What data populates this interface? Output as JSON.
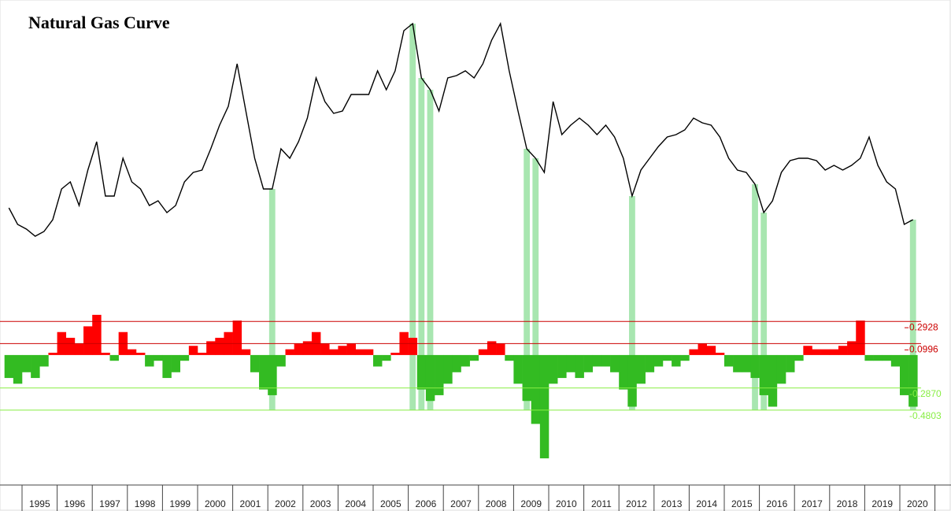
{
  "chart_data": {
    "type": "line",
    "title": "Natural Gas Curve",
    "color": "#000000",
    "ylim": [
      0,
      110
    ],
    "categories": [
      null,
      null,
      "1995",
      null,
      null,
      null,
      "1996",
      null,
      null,
      null,
      "1997",
      null,
      null,
      null,
      "1998",
      null,
      null,
      null,
      "1999",
      null,
      null,
      null,
      "2000",
      null,
      null,
      null,
      "2001",
      null,
      null,
      null,
      "2002",
      null,
      null,
      null,
      "2003",
      null,
      null,
      null,
      "2004",
      null,
      null,
      null,
      "2005",
      null,
      null,
      null,
      "2006",
      null,
      null,
      null,
      "2007",
      null,
      null,
      null,
      "2008",
      null,
      null,
      null,
      "2009",
      null,
      null,
      null,
      "2010",
      null,
      null,
      null,
      "2011",
      null,
      null,
      null,
      "2012",
      null,
      null,
      null,
      "2013",
      null,
      null,
      null,
      "2014",
      null,
      null,
      null,
      "2015",
      null,
      null,
      null,
      "2016",
      null,
      null,
      null,
      "2017",
      null,
      null,
      null,
      "2018",
      null,
      null,
      null,
      "2019",
      null,
      null,
      null,
      "2020",
      null
    ],
    "values": [
      22,
      15,
      13,
      10,
      12,
      17,
      30,
      33,
      23,
      38,
      50,
      27,
      27,
      43,
      33,
      30,
      23,
      25,
      20,
      23,
      33,
      37,
      38,
      47,
      57,
      65,
      83,
      63,
      43,
      30,
      30,
      47,
      43,
      50,
      60,
      77,
      67,
      62,
      63,
      70,
      70,
      70,
      80,
      72,
      80,
      97,
      100,
      77,
      72,
      63,
      77,
      78,
      80,
      77,
      83,
      93,
      100,
      80,
      63,
      47,
      43,
      37,
      67,
      53,
      57,
      60,
      57,
      53,
      57,
      52,
      43,
      27,
      38,
      43,
      48,
      52,
      53,
      55,
      60,
      58,
      57,
      52,
      43,
      38,
      37,
      32,
      20,
      25,
      37,
      42,
      43,
      43,
      42,
      38,
      40,
      38,
      40,
      43,
      52,
      40,
      33,
      30,
      15,
      17
    ],
    "oscillator": {
      "type": "bar",
      "ylim": [
        -1.05,
        0.5
      ],
      "positive_color": "#ff0000",
      "negative_color": "#33bb22",
      "values": [
        -0.2,
        -0.25,
        -0.15,
        -0.2,
        -0.1,
        0.02,
        0.2,
        0.15,
        0.1,
        0.25,
        0.35,
        0.02,
        -0.05,
        0.2,
        0.05,
        0.02,
        -0.1,
        -0.05,
        -0.2,
        -0.15,
        -0.05,
        0.08,
        0.02,
        0.12,
        0.15,
        0.2,
        0.3,
        0.05,
        -0.15,
        -0.3,
        -0.35,
        -0.1,
        0.05,
        0.1,
        0.12,
        0.2,
        0.1,
        0.05,
        0.08,
        0.1,
        0.05,
        0.05,
        -0.1,
        -0.05,
        0.02,
        0.2,
        0.15,
        -0.3,
        -0.4,
        -0.35,
        -0.25,
        -0.15,
        -0.1,
        -0.05,
        0.05,
        0.12,
        0.1,
        -0.05,
        -0.25,
        -0.4,
        -0.6,
        -0.9,
        -0.25,
        -0.2,
        -0.15,
        -0.2,
        -0.15,
        -0.1,
        -0.1,
        -0.15,
        -0.3,
        -0.45,
        -0.25,
        -0.15,
        -0.1,
        -0.05,
        -0.1,
        -0.05,
        0.05,
        0.1,
        0.08,
        0.02,
        -0.1,
        -0.15,
        -0.15,
        -0.2,
        -0.35,
        -0.45,
        -0.25,
        -0.15,
        -0.05,
        0.08,
        0.05,
        0.05,
        0.05,
        0.08,
        0.12,
        0.3,
        -0.05,
        -0.05,
        -0.05,
        -0.1,
        -0.35,
        -0.45
      ],
      "reference_lines": [
        {
          "value": 0.2928,
          "label": "0.2928",
          "color": "#cc0000"
        },
        {
          "value": 0.0996,
          "label": "0.0996",
          "color": "#cc0000"
        },
        {
          "value": -0.287,
          "label": "-0.2870",
          "color": "#88ee44"
        },
        {
          "value": -0.4803,
          "label": "-0.4803",
          "color": "#88ee44"
        }
      ]
    },
    "highlights": {
      "color": "#a8e6b0",
      "indices": [
        30,
        46,
        47,
        48,
        59,
        60,
        71,
        85,
        86,
        103
      ]
    }
  }
}
